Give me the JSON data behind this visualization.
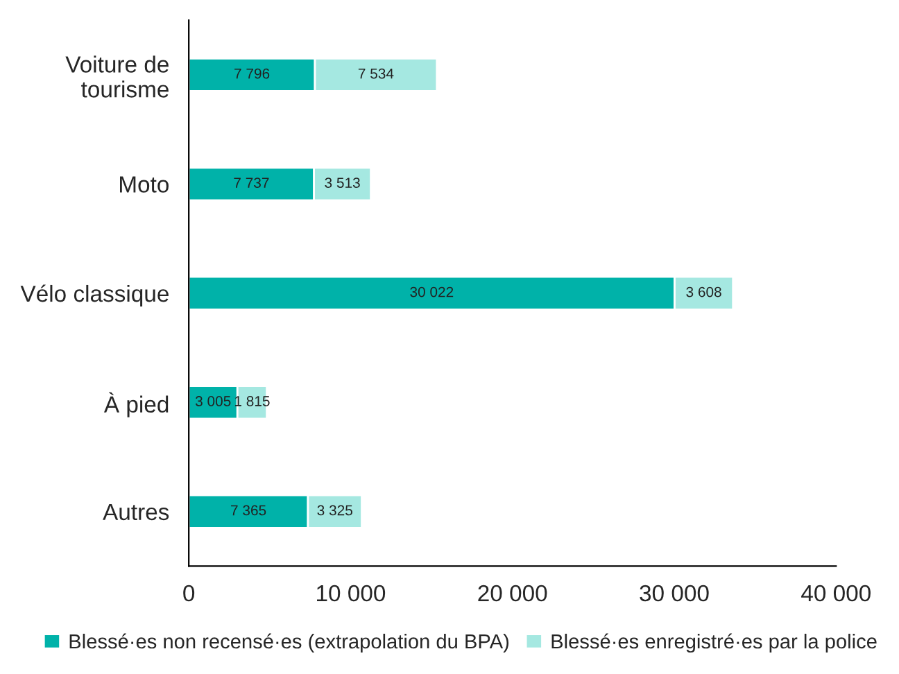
{
  "chart_data": {
    "type": "bar",
    "orientation": "horizontal",
    "stacked": true,
    "categories": [
      "Voiture de\ntourisme",
      "Moto",
      "Vélo classique",
      "À pied",
      "Autres"
    ],
    "series": [
      {
        "name": "Blessé·es non recensé·es (extrapolation du BPA)",
        "color": "#00b2a9",
        "values": [
          7796,
          7737,
          30022,
          3005,
          7365
        ],
        "value_labels": [
          "7 796",
          "7 737",
          "30 022",
          "3 005",
          "7 365"
        ]
      },
      {
        "name": "Blessé·es enregistré·es par la police",
        "color": "#a5e8e1",
        "values": [
          7534,
          3513,
          3608,
          1815,
          3325
        ],
        "value_labels": [
          "7 534",
          "3 513",
          "3 608",
          "1 815",
          "3 325"
        ]
      }
    ],
    "xlim": [
      0,
      40000
    ],
    "xticks": [
      0,
      {
        "value": 10000,
        "label": "10 000"
      },
      {
        "value": 20000,
        "label": "20 000"
      },
      {
        "value": 30000,
        "label": "30 000"
      },
      {
        "value": 40000,
        "label": "40 000"
      }
    ],
    "grid": false,
    "legend": "bottom"
  }
}
